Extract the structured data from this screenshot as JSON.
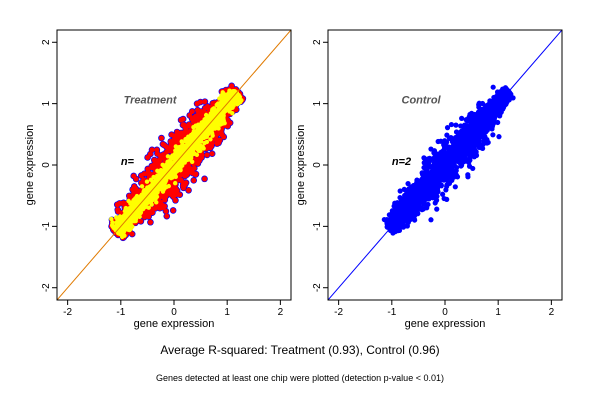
{
  "chart_data": [
    {
      "type": "scatter",
      "title": "Treatment",
      "xlabel": "gene expression",
      "ylabel": "gene expression",
      "xlim": [
        -2.2,
        2.2
      ],
      "ylim": [
        -2.2,
        2.2
      ],
      "x_ticks": [
        -2,
        -1,
        0,
        1,
        2
      ],
      "y_ticks": [
        -2,
        -1,
        0,
        1,
        2
      ],
      "annotation": "n=",
      "annotation_at": [
        -1.0,
        0.0
      ],
      "reference_line": {
        "slope": 1,
        "intercept": 0,
        "color": "#e07a00"
      },
      "colors": {
        "outline": "#0000ff",
        "main": "#ff0000",
        "core": "#ffff00",
        "title": "#555555"
      },
      "cloud": {
        "x_range": [
          -1.1,
          1.2
        ],
        "spread": 0.32,
        "core_spread": 0.07
      }
    },
    {
      "type": "scatter",
      "title": "Control",
      "xlabel": "gene expression",
      "ylabel": "gene expression",
      "xlim": [
        -2.2,
        2.2
      ],
      "ylim": [
        -2.2,
        2.2
      ],
      "x_ticks": [
        -2,
        -1,
        0,
        1,
        2
      ],
      "y_ticks": [
        -2,
        -1,
        0,
        1,
        2
      ],
      "annotation": "n=2",
      "annotation_at": [
        -1.0,
        0.0
      ],
      "reference_line": {
        "slope": 1,
        "intercept": 0,
        "color": "#0000ff"
      },
      "colors": {
        "main": "#0000ff",
        "title": "#555555"
      },
      "cloud": {
        "x_range": [
          -1.05,
          1.2
        ],
        "spread": 0.26
      }
    }
  ],
  "captions": {
    "main": "Average R-squared: Treatment (0.93), Control (0.96)",
    "sub": "Genes detected at least one chip were plotted (detection p-value < 0.01)"
  }
}
